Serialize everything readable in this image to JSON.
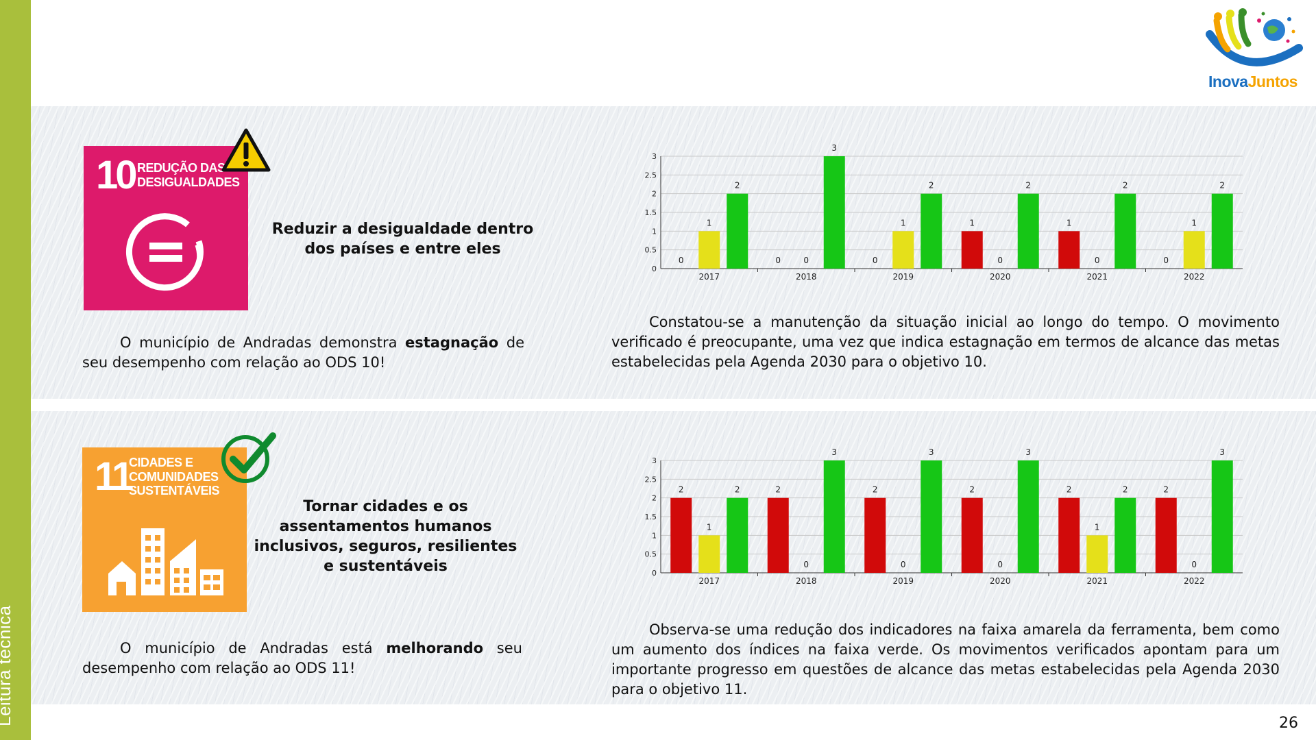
{
  "sidebar": {
    "label": "Leitura técnica",
    "color": "#a9bf3c"
  },
  "logo": {
    "text_part1": "Inova",
    "text_part2": "Juntos",
    "color1": "#1b6fc0",
    "color2": "#f5a300"
  },
  "sections": [
    {
      "ods_number": "10",
      "ods_title_line1": "REDUÇÃO DAS",
      "ods_title_line2": "DESIGUALDADES",
      "ods_color": "#dd1a6b",
      "status_icon": "warning-icon",
      "goal": "Reduzir a desigualdade dentro dos países e entre eles",
      "summary_pre": "O município de Andradas demonstra ",
      "summary_bold": "estagnação",
      "summary_post": " de seu desempenho com relação ao ODS 10!",
      "analysis": "Constatou-se a manutenção da situação inicial ao longo do tempo. O movimento verificado é preocupante, uma vez que indica estagnação em termos de alcance das metas estabelecidas pela Agenda 2030 para o objetivo 10."
    },
    {
      "ods_number": "11",
      "ods_title_line1": "CIDADES E",
      "ods_title_line2": "COMUNIDADES",
      "ods_title_line3": "SUSTENTÁVEIS",
      "ods_color": "#f7a131",
      "status_icon": "checkmark-icon",
      "goal": "Tornar cidades e os assentamentos humanos inclusivos, seguros, resilientes e sustentáveis",
      "summary_pre": "O município de Andradas está ",
      "summary_bold": "melhorando",
      "summary_post": " seu desempenho com relação ao ODS 11!",
      "analysis": "Observa-se uma redução dos indicadores na faixa amarela da ferramenta, bem como um aumento dos índices na faixa verde. Os movimentos verificados apontam para um importante progresso em questões de alcance das metas estabelecidas pela Agenda 2030 para o objetivo 11."
    }
  ],
  "chart_data": [
    {
      "type": "bar",
      "categories": [
        "2017",
        "2018",
        "2019",
        "2020",
        "2021",
        "2022"
      ],
      "series": [
        {
          "color": "#d10a0a",
          "values": [
            0,
            0,
            0,
            1,
            1,
            0
          ]
        },
        {
          "color": "#e5e01a",
          "values": [
            1,
            0,
            1,
            0,
            0,
            1
          ]
        },
        {
          "color": "#16c616",
          "values": [
            2,
            3,
            2,
            2,
            2,
            2
          ]
        }
      ],
      "yticks": [
        "0",
        "0.5",
        "1",
        "1.5",
        "2",
        "2.5",
        "3"
      ],
      "ylim": [
        0,
        3
      ],
      "grid": true
    },
    {
      "type": "bar",
      "categories": [
        "2017",
        "2018",
        "2019",
        "2020",
        "2021",
        "2022"
      ],
      "series": [
        {
          "color": "#d10a0a",
          "values": [
            2,
            2,
            2,
            2,
            2,
            2
          ]
        },
        {
          "color": "#e5e01a",
          "values": [
            1,
            0,
            0,
            0,
            1,
            0
          ]
        },
        {
          "color": "#16c616",
          "values": [
            2,
            3,
            3,
            3,
            2,
            3
          ]
        }
      ],
      "yticks": [
        "0",
        "0.5",
        "1",
        "1.5",
        "2",
        "2.5",
        "3"
      ],
      "ylim": [
        0,
        3
      ],
      "grid": true
    }
  ],
  "page_number": "26"
}
